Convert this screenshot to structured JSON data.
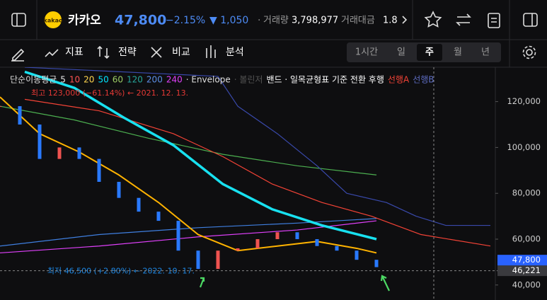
{
  "header": {
    "logo": "kakao",
    "name": "카카오",
    "price": "47,800",
    "change_pct": "−2.15%",
    "change": "▼ 1,050",
    "dot": "·",
    "volume_label": "거래량",
    "volume": "3,798,977",
    "amount_label": "거래대금",
    "amount": "1.8"
  },
  "toolbar": {
    "tools": [
      "지표",
      "전략",
      "비교",
      "분석"
    ],
    "periods": [
      "1시간",
      "일",
      "주",
      "월",
      "년"
    ],
    "selected": 2
  },
  "legend": [
    {
      "text": "단순이동평균",
      "color": "#dddddd"
    },
    {
      "text": "5",
      "color": "#e8e8e8"
    },
    {
      "text": "10",
      "color": "#ff5252"
    },
    {
      "text": "20",
      "color": "#ffd54f"
    },
    {
      "text": "50",
      "color": "#00e5ff"
    },
    {
      "text": "60",
      "color": "#9ccc65"
    },
    {
      "text": "120",
      "color": "#26a69a"
    },
    {
      "text": "200",
      "color": "#5c8ee6"
    },
    {
      "text": "240",
      "color": "#e040fb"
    },
    {
      "text": "· Envelope",
      "color": "#dddddd"
    },
    {
      "text": "· 볼린저",
      "color": "#555555"
    },
    {
      "text": "밴드 · 일목균형표 기준 전환 후행",
      "color": "#ffffff"
    },
    {
      "text": "선행A",
      "color": "#f44336"
    },
    {
      "text": "선행B",
      "color": "#5c6bc0"
    }
  ],
  "chart": {
    "xlim": [
      0,
      100
    ],
    "ylim": [
      35000,
      135000
    ],
    "yticks": [
      {
        "value": 40000,
        "label": "40,000"
      },
      {
        "value": 60000,
        "label": "60,000"
      },
      {
        "value": 80000,
        "label": "80,000"
      },
      {
        "value": 100000,
        "label": "100,000"
      },
      {
        "value": 120000,
        "label": "120,000"
      }
    ],
    "price_labels": [
      {
        "value": 47800,
        "label": "47,800",
        "color": "#2962ff"
      },
      {
        "value": 46221,
        "label": "46,221",
        "color": "#3a3a3e"
      }
    ],
    "annotations": [
      {
        "text": "최고 123,000 (−61.14%) ← 2021. 12. 13.",
        "x": 2,
        "value": 123000,
        "color": "#e53935"
      },
      {
        "text": "최저 46,500 (+2.80%) ← 2022. 10. 17.",
        "x": 40,
        "value": 46500,
        "color": "#1e88e5"
      }
    ],
    "candles": {
      "x": [
        0,
        4,
        8,
        12,
        16,
        20,
        24,
        28,
        32,
        36,
        40,
        44,
        48,
        52,
        56,
        60,
        64,
        68,
        72,
        76
      ],
      "values": [
        118000,
        110000,
        95000,
        100000,
        95000,
        85000,
        78000,
        72000,
        68000,
        55000,
        47000,
        55000,
        56000,
        60000,
        63000,
        60000,
        57000,
        55000,
        51000,
        47800
      ],
      "up_color": "#ef5350",
      "down_color": "#2979ff"
    },
    "series": [
      {
        "color": "#e040fb",
        "width": 1.2,
        "x": [
          0,
          20,
          40,
          60,
          76
        ],
        "values": [
          54000,
          57000,
          61000,
          64000,
          68000
        ]
      },
      {
        "color": "#3f7fe0",
        "width": 1.2,
        "x": [
          0,
          20,
          40,
          60,
          76
        ],
        "values": [
          57000,
          62000,
          65000,
          67000,
          69000
        ]
      },
      {
        "color": "#4caf50",
        "width": 1.2,
        "x": [
          0,
          15,
          30,
          45,
          60,
          76
        ],
        "values": [
          118000,
          112000,
          104000,
          97000,
          92000,
          88000
        ]
      },
      {
        "color": "#f44336",
        "width": 1.2,
        "x": [
          5,
          20,
          35,
          45,
          55,
          65,
          75,
          85,
          99
        ],
        "values": [
          121000,
          116000,
          106000,
          96000,
          84000,
          76000,
          70000,
          62000,
          57000
        ]
      },
      {
        "color": "#3949ab",
        "width": 1.2,
        "x": [
          5,
          44,
          48,
          56,
          64,
          70,
          78,
          84,
          90,
          99
        ],
        "values": [
          135000,
          131000,
          118000,
          106000,
          92000,
          80000,
          76000,
          70000,
          66000,
          66000
        ]
      },
      {
        "color": "#ffb300",
        "width": 2,
        "x": [
          0,
          8,
          16,
          24,
          32,
          40,
          48,
          56,
          64,
          72,
          76
        ],
        "values": [
          122000,
          106000,
          98000,
          88000,
          76000,
          62000,
          55000,
          57000,
          59000,
          56000,
          54000
        ]
      },
      {
        "color": "#18e1f0",
        "width": 3.5,
        "x": [
          5,
          15,
          25,
          35,
          45,
          55,
          65,
          76
        ],
        "values": [
          133000,
          126000,
          113000,
          101000,
          84000,
          73000,
          66000,
          60000
        ]
      }
    ]
  }
}
